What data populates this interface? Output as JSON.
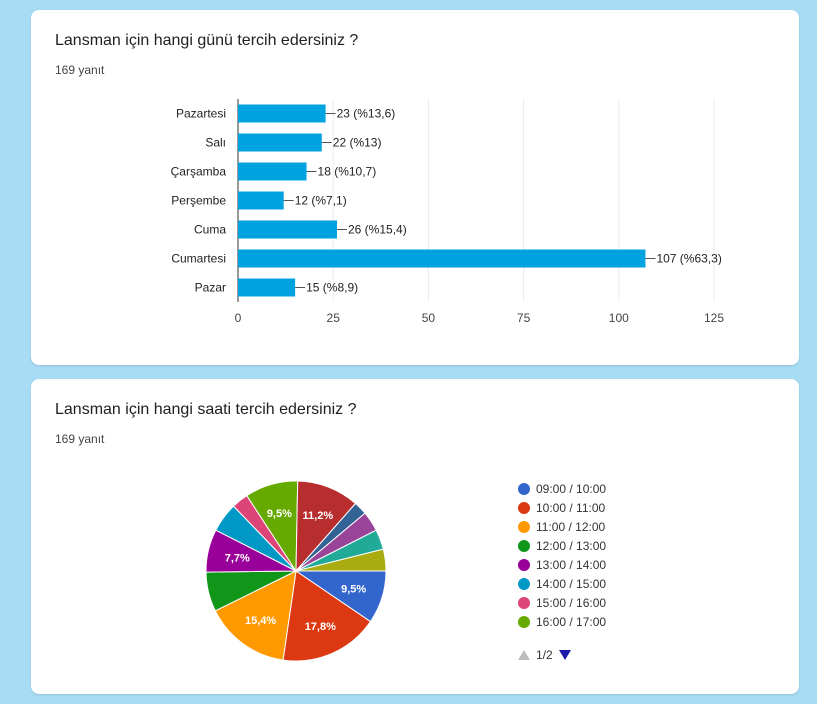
{
  "q1": {
    "title": "Lansman için hangi günü tercih edersiniz ?",
    "count": "169 yanıt",
    "chart_data": {
      "type": "bar",
      "orientation": "horizontal",
      "categories": [
        "Pazartesi",
        "Salı",
        "Çarşamba",
        "Perşembe",
        "Cuma",
        "Cumartesi",
        "Pazar"
      ],
      "values": [
        23,
        22,
        18,
        12,
        26,
        107,
        15
      ],
      "labels": [
        "23 (%13,6)",
        "22 (%13)",
        "18 (%10,7)",
        "12 (%7,1)",
        "26 (%15,4)",
        "107 (%63,3)",
        "15 (%8,9)"
      ],
      "xlim": [
        0,
        125
      ],
      "xticks": [
        "0",
        "25",
        "50",
        "75",
        "100",
        "125"
      ],
      "color": "#00a3e0",
      "grid": true
    }
  },
  "q2": {
    "title": "Lansman için hangi saati tercih edersiniz ?",
    "count": "169 yanıt",
    "chart_data": {
      "type": "pie",
      "slices": [
        {
          "value": 9.5,
          "color": "#3366cc",
          "label": "9,5%"
        },
        {
          "value": 17.8,
          "color": "#dc3912",
          "label": "17,8%"
        },
        {
          "value": 15.4,
          "color": "#ff9900",
          "label": "15,4%"
        },
        {
          "value": 7.1,
          "color": "#109618",
          "label": ""
        },
        {
          "value": 7.7,
          "color": "#990099",
          "label": "7,7%"
        },
        {
          "value": 5.3,
          "color": "#0099c6",
          "label": ""
        },
        {
          "value": 3.0,
          "color": "#dd4477",
          "label": ""
        },
        {
          "value": 9.5,
          "color": "#66aa00",
          "label": "9,5%"
        },
        {
          "value": 11.2,
          "color": "#b82e2e",
          "label": "11,2%"
        },
        {
          "value": 2.4,
          "color": "#316395",
          "label": ""
        },
        {
          "value": 3.6,
          "color": "#994499",
          "label": ""
        },
        {
          "value": 3.6,
          "color": "#22aa99",
          "label": ""
        },
        {
          "value": 3.9,
          "color": "#aaaa11",
          "label": ""
        }
      ]
    },
    "legend": [
      {
        "label": "09:00 / 10:00",
        "color": "#3366cc"
      },
      {
        "label": "10:00 / 11:00",
        "color": "#dc3912"
      },
      {
        "label": "11:00 / 12:00",
        "color": "#ff9900"
      },
      {
        "label": "12:00 / 13:00",
        "color": "#109618"
      },
      {
        "label": "13:00 / 14:00",
        "color": "#990099"
      },
      {
        "label": "14:00 / 15:00",
        "color": "#0099c6"
      },
      {
        "label": "15:00 / 16:00",
        "color": "#dd4477"
      },
      {
        "label": "16:00 / 17:00",
        "color": "#66aa00"
      }
    ],
    "pager": "1/2"
  }
}
